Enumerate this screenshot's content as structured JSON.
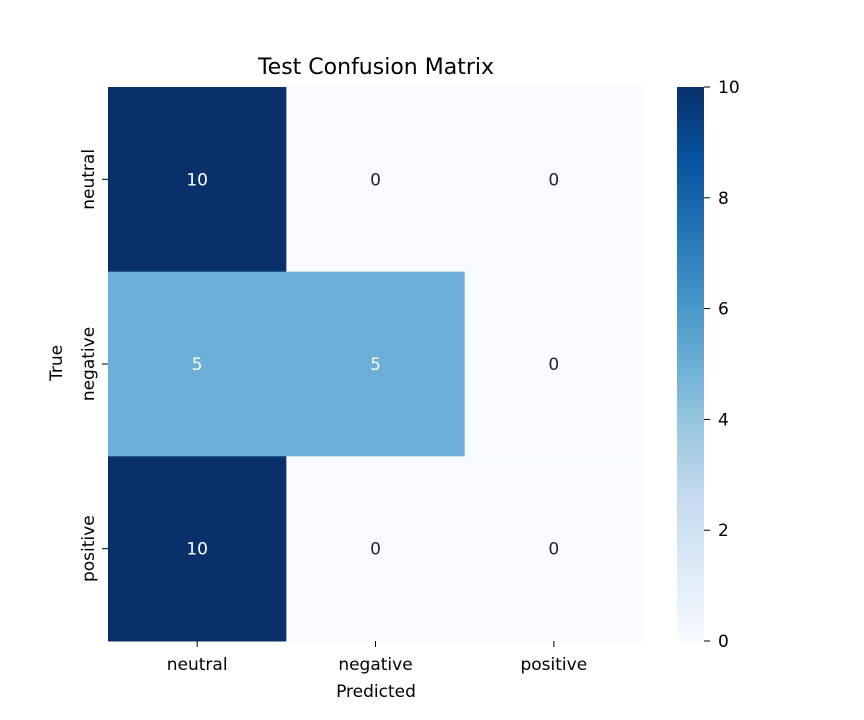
{
  "chart_data": {
    "type": "heatmap",
    "title": "Test Confusion Matrix",
    "xlabel": "Predicted",
    "ylabel": "True",
    "x_categories": [
      "neutral",
      "negative",
      "positive"
    ],
    "y_categories": [
      "neutral",
      "negative",
      "positive"
    ],
    "values": [
      [
        10,
        0,
        0
      ],
      [
        5,
        5,
        0
      ],
      [
        10,
        0,
        0
      ]
    ],
    "colorbar": {
      "min": 0,
      "max": 10,
      "ticks": [
        "0",
        "2",
        "4",
        "6",
        "8",
        "10"
      ]
    },
    "colormap": "Blues",
    "colors": {
      "low": "#f7fbff",
      "high": "#08306b",
      "text_dark": "#262626",
      "text_light": "#ffffff"
    }
  }
}
